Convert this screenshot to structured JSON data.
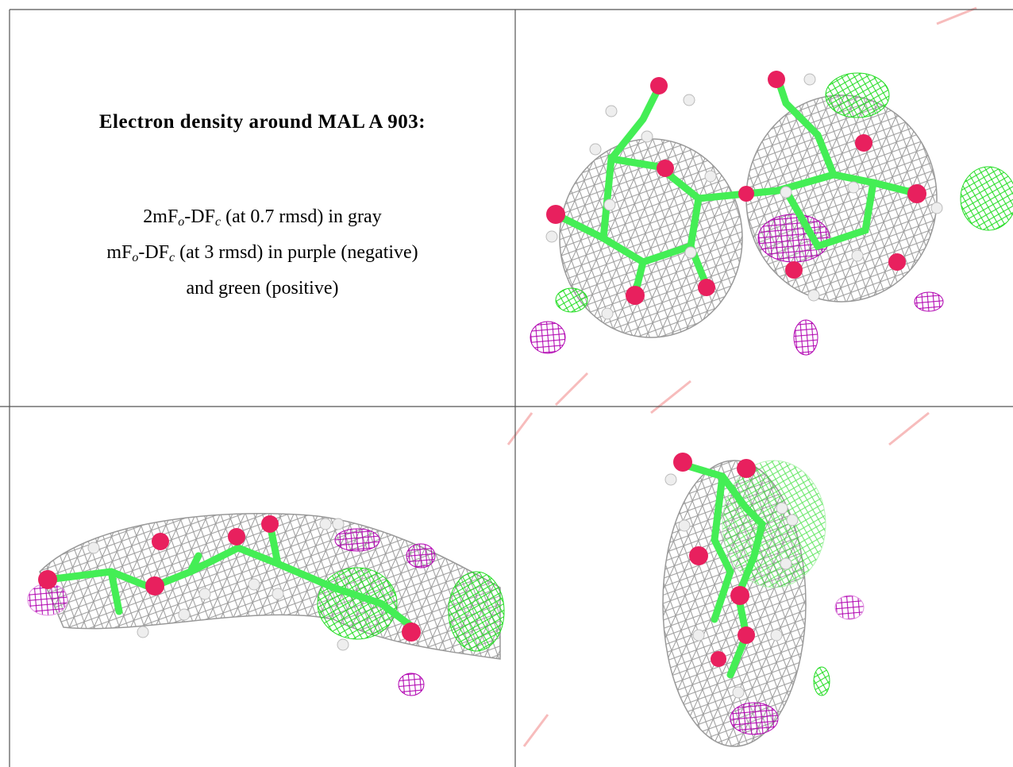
{
  "title": "Electron density around MAL A 903:",
  "legend_lines": [
    [
      "2mF",
      "o",
      "-DF",
      "c",
      " (at 0.7 rmsd) in gray"
    ],
    [
      "mF",
      "o",
      "-DF",
      "c",
      " (at 3 rmsd) in purple (negative)"
    ],
    [
      "and green (positive)"
    ]
  ]
}
